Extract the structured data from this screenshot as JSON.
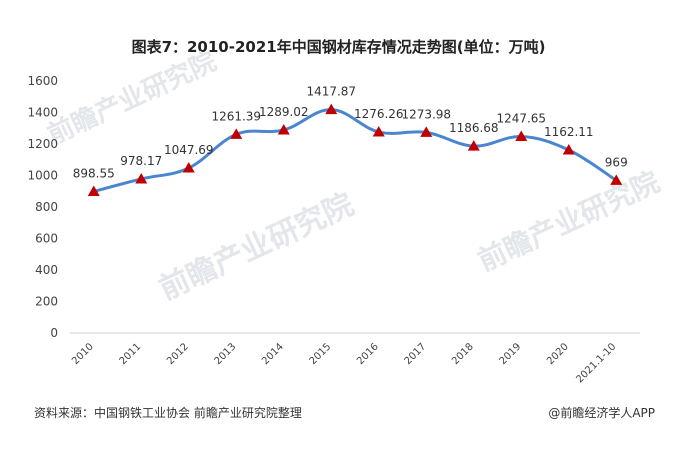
{
  "chart_data": {
    "type": "line",
    "title": "图表7：2010-2021年中国钢材库存情况走势图(单位：万吨)",
    "categories": [
      "2010",
      "2011",
      "2012",
      "2013",
      "2014",
      "2015",
      "2016",
      "2017",
      "2018",
      "2019",
      "2020",
      "2021.1-10"
    ],
    "series": [
      {
        "values": [
          898.55,
          978.17,
          1047.69,
          1261.39,
          1289.02,
          1417.87,
          1276.26,
          1273.98,
          1186.68,
          1247.65,
          1162.11,
          969
        ]
      }
    ],
    "data_labels": [
      "898.55",
      "978.17",
      "1047.69",
      "1261.39",
      "1289.02",
      "1417.87",
      "1276.26",
      "1273.98",
      "1186.68",
      "1247.65",
      "1162.11",
      "969"
    ],
    "yticks": [
      "0",
      "200",
      "400",
      "600",
      "800",
      "1000",
      "1200",
      "1400",
      "1600"
    ],
    "ylim": [
      0,
      1600
    ],
    "xlabel": "",
    "ylabel": "",
    "grid": false,
    "legend": "none",
    "line_color": "#4a86d0",
    "marker_color": "#c00000",
    "marker_shape": "triangle"
  },
  "footer": {
    "source": "资料来源：中国钢铁工业协会 前瞻产业研究院整理",
    "brand": "@前瞻经济学人APP"
  },
  "watermark": "前瞻产业研究院"
}
